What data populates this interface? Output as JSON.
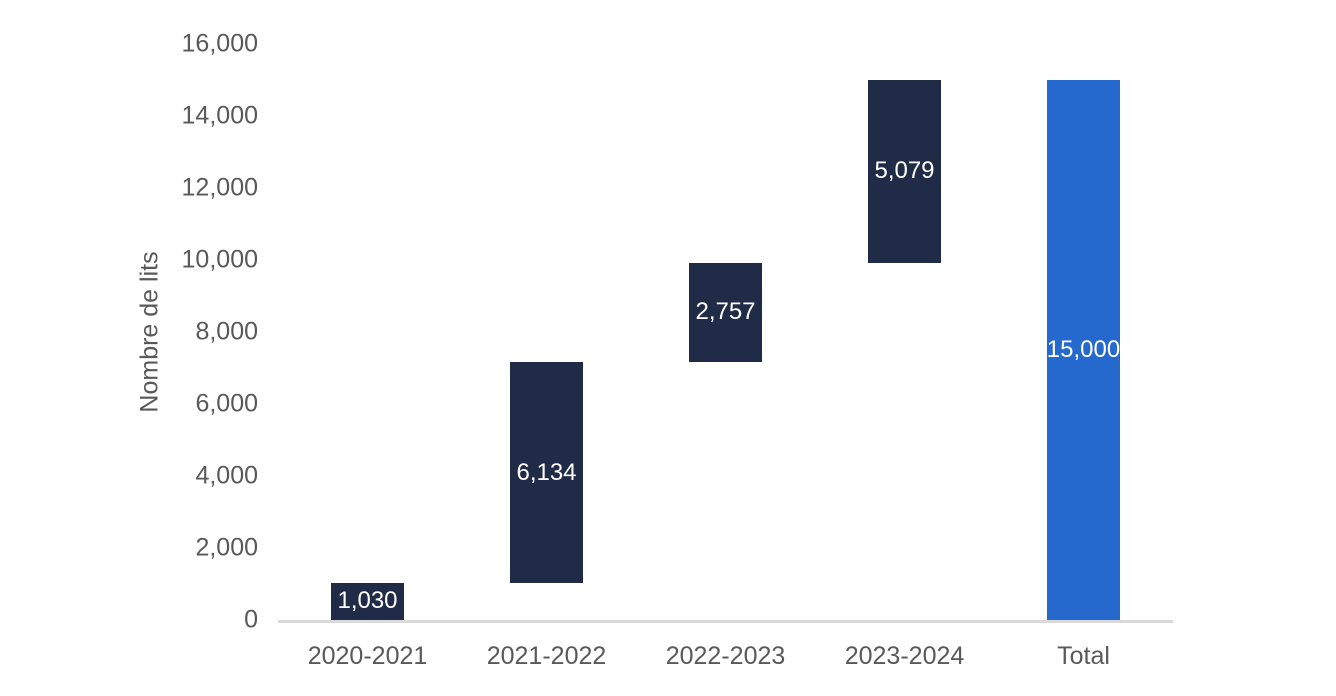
{
  "chart_data": {
    "type": "bar",
    "subtype": "waterfall",
    "title": "",
    "xlabel": "",
    "ylabel": "Nombre de lits",
    "categories": [
      "2020-2021",
      "2021-2022",
      "2022-2023",
      "2023-2024",
      "Total"
    ],
    "values": [
      1030,
      6134,
      2757,
      5079,
      15000
    ],
    "segment_starts": [
      0,
      1030,
      7164,
      9921,
      0
    ],
    "segment_ends": [
      1030,
      7164,
      9921,
      15000,
      15000
    ],
    "data_labels": [
      "1,030",
      "6,134",
      "2,757",
      "5,079",
      "15,000"
    ],
    "ylim": [
      0,
      16000
    ],
    "ytick_interval": 2000,
    "ytick_labels": [
      "0",
      "2,000",
      "4,000",
      "6,000",
      "8,000",
      "10,000",
      "12,000",
      "14,000",
      "16,000"
    ],
    "grid": false,
    "legend": null,
    "colors": {
      "increment_bar": "#1f2b47",
      "total_bar": "#2568ce",
      "data_label_text": "#ffffff",
      "axis_text": "#595959",
      "axis_line": "#d9d9d9"
    }
  }
}
